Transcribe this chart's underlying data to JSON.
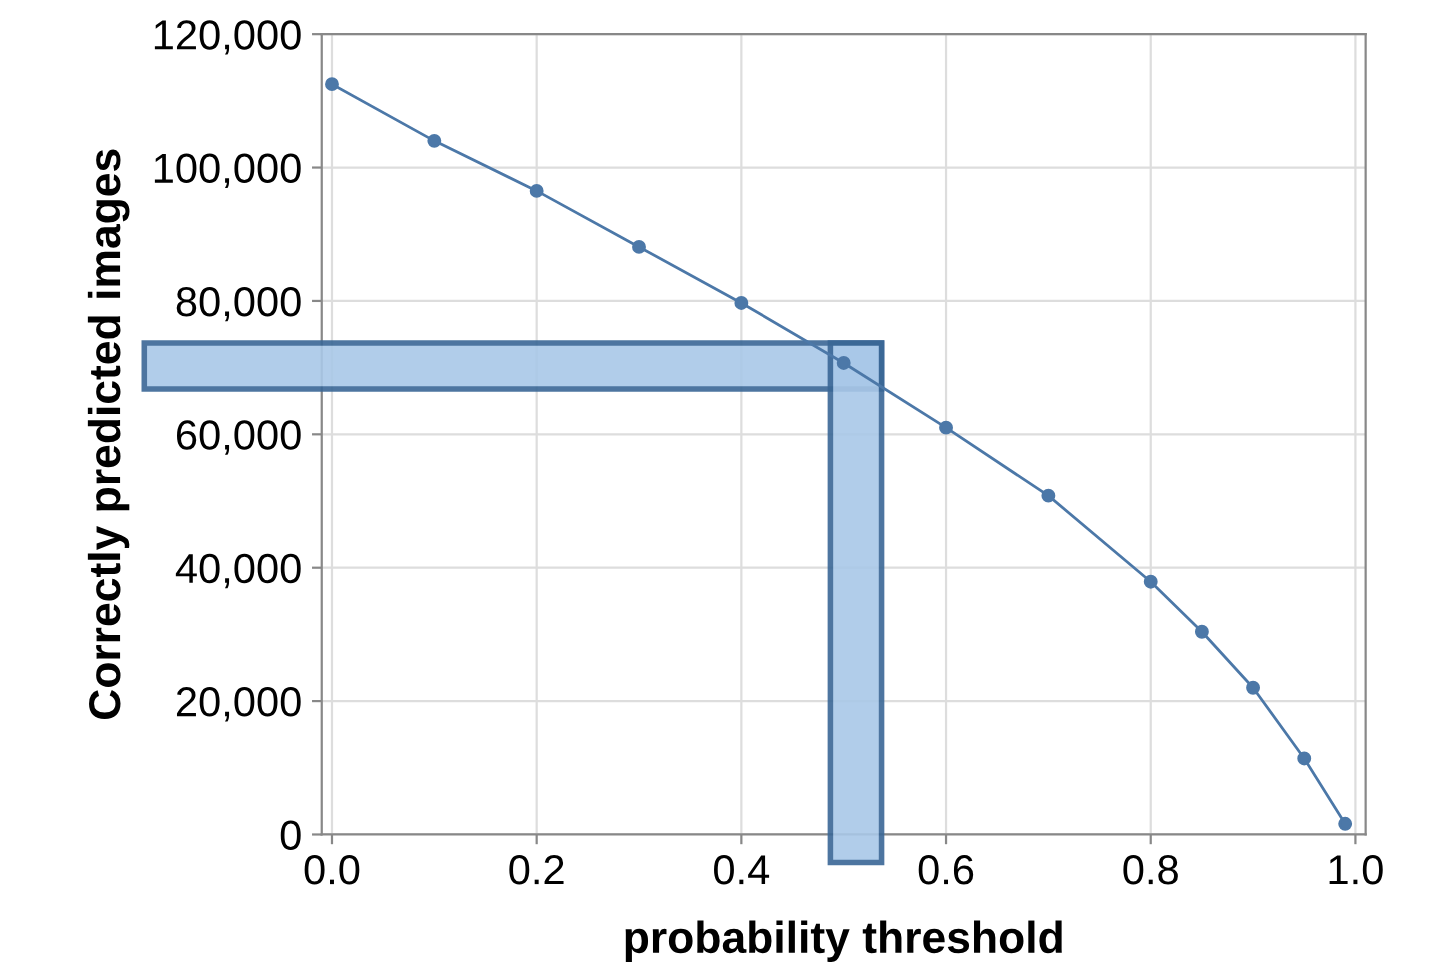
{
  "chart_data": {
    "type": "line",
    "xlabel": "probability threshold",
    "ylabel": "Correctly predicted images",
    "x": [
      0.0,
      0.1,
      0.2,
      0.3,
      0.4,
      0.5,
      0.6,
      0.7,
      0.8,
      0.85,
      0.9,
      0.95,
      0.99
    ],
    "series": [
      {
        "color": "#4c78a8",
        "values": [
          112500,
          104000,
          96500,
          88100,
          79700,
          70700,
          61000,
          50800,
          37900,
          30400,
          22000,
          11400,
          1600
        ]
      }
    ],
    "marker": "circle",
    "line_style": "solid",
    "grid": true,
    "xlim": [
      -0.01,
      1.01
    ],
    "ylim": [
      0,
      120000
    ],
    "xticks": [
      {
        "value": 0,
        "label": "0.0"
      },
      {
        "value": 0.2,
        "label": "0.2"
      },
      {
        "value": 0.4,
        "label": "0.4"
      },
      {
        "value": 0.6,
        "label": "0.6"
      },
      {
        "value": 0.8,
        "label": "0.8"
      },
      {
        "value": 1,
        "label": "1.0"
      }
    ],
    "yticks": [
      {
        "value": 0,
        "label": "0"
      },
      {
        "value": 20000,
        "label": "20,000"
      },
      {
        "value": 40000,
        "label": "40,000"
      },
      {
        "value": 60000,
        "label": "60,000"
      },
      {
        "value": 80000,
        "label": "80,000"
      },
      {
        "value": 100000,
        "label": "100,000"
      },
      {
        "value": 120000,
        "label": "120,000"
      }
    ],
    "bands": [
      {
        "axis": "y",
        "from": 66800,
        "to": 73700,
        "color": "#a9c8e8"
      },
      {
        "axis": "x",
        "from": 0.487,
        "to": 0.537,
        "color": "#a9c8e8"
      }
    ]
  }
}
